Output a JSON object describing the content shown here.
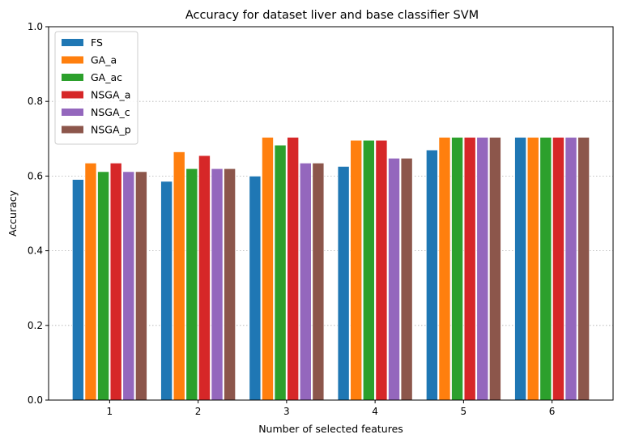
{
  "chart_data": {
    "type": "bar",
    "title": "Accuracy for dataset liver and base classifier SVM",
    "xlabel": "Number of selected features",
    "ylabel": "Accuracy",
    "categories": [
      "1",
      "2",
      "3",
      "4",
      "5",
      "6"
    ],
    "ylim": [
      0.0,
      1.0
    ],
    "yticks": [
      "0.0",
      "0.2",
      "0.4",
      "0.6",
      "0.8",
      "1.0"
    ],
    "grid": "horizontal dotted",
    "legend_position": "top-left",
    "series": [
      {
        "name": "FS",
        "color": "#1f77b4",
        "values": [
          0.591,
          0.586,
          0.6,
          0.626,
          0.67,
          0.704
        ]
      },
      {
        "name": "GA_a",
        "color": "#ff7f0e",
        "values": [
          0.635,
          0.665,
          0.704,
          0.696,
          0.704,
          0.704
        ]
      },
      {
        "name": "GA_ac",
        "color": "#2ca02c",
        "values": [
          0.612,
          0.62,
          0.683,
          0.696,
          0.704,
          0.704
        ]
      },
      {
        "name": "NSGA_a",
        "color": "#d62728",
        "values": [
          0.635,
          0.655,
          0.704,
          0.696,
          0.704,
          0.704
        ]
      },
      {
        "name": "NSGA_c",
        "color": "#9467bd",
        "values": [
          0.612,
          0.62,
          0.635,
          0.648,
          0.704,
          0.704
        ]
      },
      {
        "name": "NSGA_p",
        "color": "#8c564b",
        "values": [
          0.612,
          0.62,
          0.635,
          0.648,
          0.704,
          0.704
        ]
      }
    ]
  }
}
